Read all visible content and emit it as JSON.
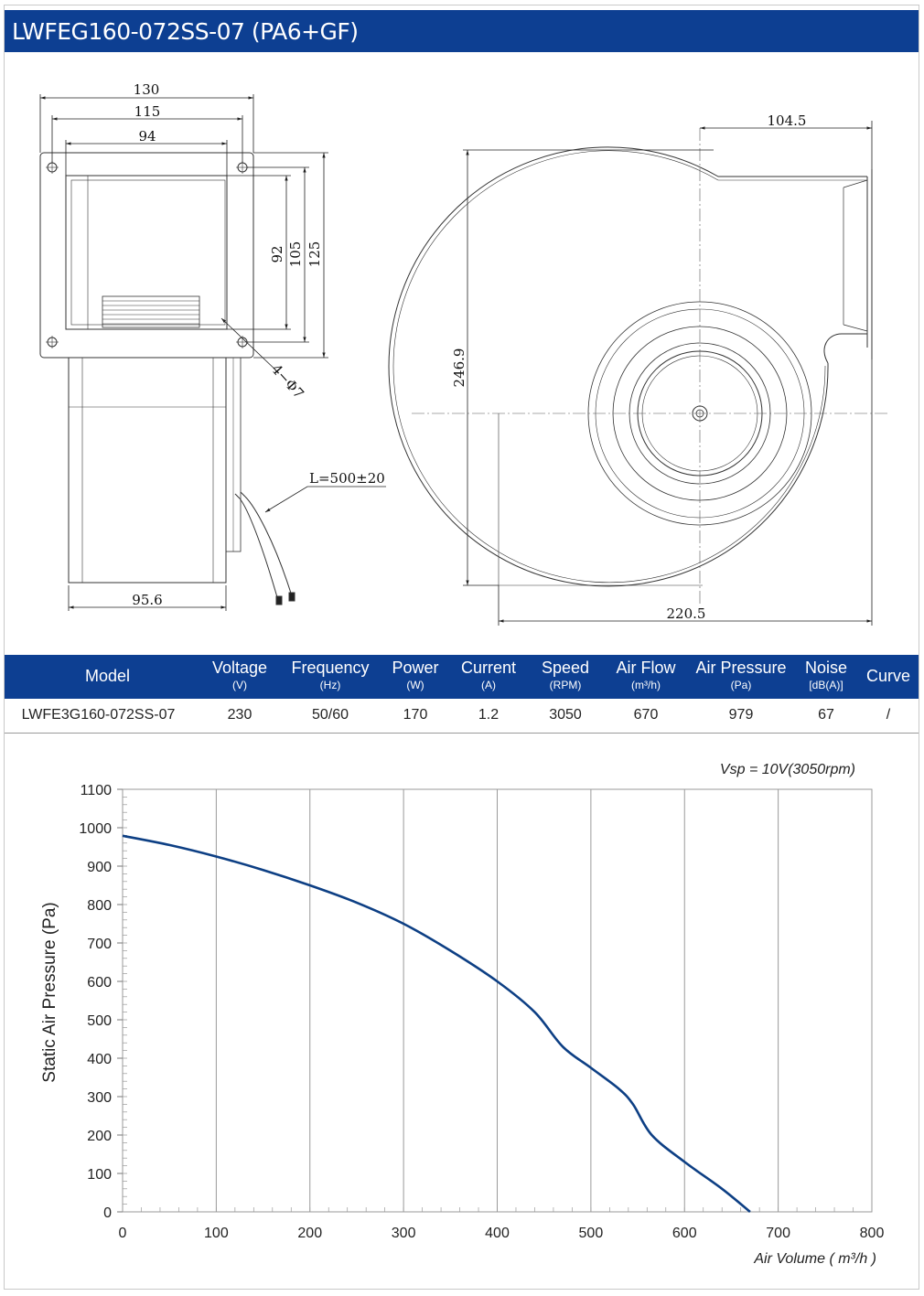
{
  "title": "LWFEG160-072SS-07 (PA6+GF)",
  "drawing": {
    "dims": {
      "w130": "130",
      "w115": "115",
      "w94": "94",
      "h92": "92",
      "h105": "105",
      "h125": "125",
      "holes": "4−Φ7",
      "cable": "L=500±20",
      "depth": "95.6",
      "d104": "104.5",
      "d246": "246.9",
      "d220": "220.5"
    }
  },
  "specs": {
    "headers": [
      {
        "label": "Model",
        "unit": ""
      },
      {
        "label": "Voltage",
        "unit": "(V)"
      },
      {
        "label": "Frequency",
        "unit": "(Hz)"
      },
      {
        "label": "Power",
        "unit": "(W)"
      },
      {
        "label": "Current",
        "unit": "(A)"
      },
      {
        "label": "Speed",
        "unit": "(RPM)"
      },
      {
        "label": "Air Flow",
        "unit": "(m³/h)"
      },
      {
        "label": "Air Pressure",
        "unit": "(Pa)"
      },
      {
        "label": "Noise",
        "unit": "[dB(A)]"
      },
      {
        "label": "Curve",
        "unit": ""
      }
    ],
    "row": [
      "LWFE3G160-072SS-07",
      "230",
      "50/60",
      "170",
      "1.2",
      "3050",
      "670",
      "979",
      "67",
      "/"
    ]
  },
  "chart_data": {
    "type": "line",
    "annotation": "Vsp = 10V(3050rpm)",
    "xlabel": "Air Volume ( m³/h )",
    "ylabel": "Static Air Pressure  (Pa)",
    "xlim": [
      0,
      800
    ],
    "ylim": [
      0,
      1100
    ],
    "xticks": [
      0,
      100,
      200,
      300,
      400,
      500,
      600,
      700,
      800
    ],
    "yticks": [
      0,
      100,
      200,
      300,
      400,
      500,
      600,
      700,
      800,
      900,
      1000,
      1100
    ],
    "grid": true,
    "series": [
      {
        "color": "#0d3f84",
        "x": [
          0,
          50,
          100,
          150,
          200,
          250,
          300,
          350,
          400,
          440,
          470,
          500,
          530,
          545,
          565,
          600,
          640,
          670
        ],
        "y": [
          979,
          955,
          925,
          890,
          850,
          805,
          750,
          680,
          600,
          520,
          430,
          375,
          320,
          280,
          200,
          130,
          60,
          0
        ]
      }
    ]
  }
}
